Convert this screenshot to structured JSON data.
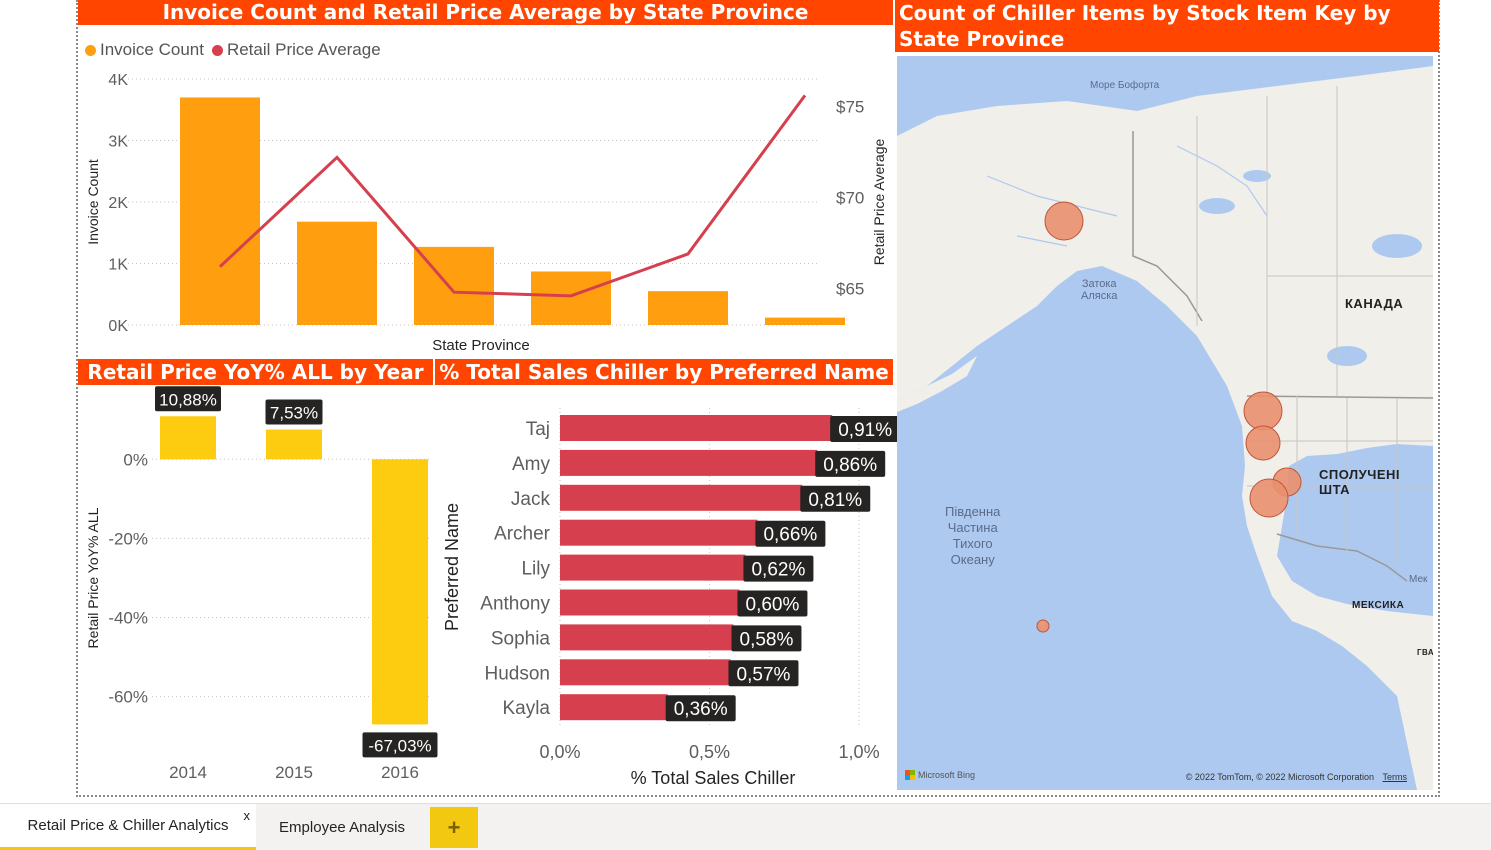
{
  "invoice_chart": {
    "title": "Invoice Count and Retail Price Average by State Province",
    "legend": [
      {
        "label": "Invoice Count",
        "color": "#ff9f0f"
      },
      {
        "label": "Retail Price Average",
        "color": "#d6404e"
      }
    ],
    "xlabel": "State Province",
    "ylabel_left": "Invoice Count",
    "ylabel_right": "Retail Price Average",
    "left_ticks": [
      "4K",
      "3K",
      "2K",
      "1K",
      "0K"
    ],
    "right_ticks": [
      "$75",
      "$70",
      "$65"
    ]
  },
  "yoy_chart": {
    "title": "Retail Price YoY% ALL by Year",
    "ylabel": "Retail Price YoY% ALL",
    "y_ticks": [
      "0%",
      "-20%",
      "-40%",
      "-60%"
    ]
  },
  "chiller_chart": {
    "title": "% Total Sales Chiller by Preferred Name",
    "ylabel": "Preferred Name",
    "xlabel": "% Total Sales Chiller",
    "x_ticks": [
      "0,0%",
      "0,5%",
      "1,0%"
    ]
  },
  "map_visual": {
    "title": "Count of Chiller Items by Stock Item Key by State Province",
    "labels": {
      "beaufort_sea": "Море Бофорта",
      "gulf_alaska_1": "Затока",
      "gulf_alaska_2": "Аляска",
      "canada": "КАНАДА",
      "usa": "СПОЛУЧЕНІ ШТА",
      "mexico": "МЕКСИКА",
      "mexico_sea": "Мек",
      "guat": "ГВА",
      "pacific_1": "Південна",
      "pacific_2": "Частина",
      "pacific_3": "Тихого",
      "pacific_4": "Океану"
    },
    "bing": "Microsoft Bing",
    "credits": "© 2022 TomTom, © 2022 Microsoft Corporation",
    "terms": "Terms",
    "bubble_color": "#e9906e"
  },
  "tabs": {
    "items": [
      {
        "label": "Retail Price & Chiller Analytics"
      },
      {
        "label": "Employee Analysis"
      }
    ],
    "close_glyph": "x",
    "add_glyph": "+"
  },
  "chart_data": [
    {
      "type": "bar",
      "title": "Invoice Count and Retail Price Average by State Province",
      "xlabel": "State Province",
      "categories": [
        "",
        "",
        "",
        "",
        "",
        ""
      ],
      "series": [
        {
          "name": "Invoice Count",
          "kind": "bar",
          "axis": "left",
          "values": [
            3700,
            1680,
            1270,
            870,
            550,
            120
          ]
        },
        {
          "name": "Retail Price Average",
          "kind": "line",
          "axis": "right",
          "values": [
            66.2,
            72.2,
            64.8,
            64.6,
            66.9,
            75.6
          ]
        }
      ],
      "ylim_left": [
        0,
        4000
      ],
      "ylim_right": [
        63,
        76.5
      ],
      "legend": "top-left",
      "grid": true
    },
    {
      "type": "bar",
      "title": "Retail Price YoY% ALL by Year",
      "categories": [
        "2014",
        "2015",
        "2016"
      ],
      "values": [
        10.88,
        7.53,
        -67.03
      ],
      "labels": [
        "10,88%",
        "7,53%",
        "-67,03%"
      ],
      "ylabel": "Retail Price YoY% ALL",
      "ylim": [
        -74,
        16
      ],
      "grid": true
    },
    {
      "type": "bar",
      "orientation": "horizontal",
      "title": "% Total Sales Chiller by Preferred Name",
      "categories": [
        "Taj",
        "Amy",
        "Jack",
        "Archer",
        "Lily",
        "Anthony",
        "Sophia",
        "Hudson",
        "Kayla"
      ],
      "values": [
        0.91,
        0.86,
        0.81,
        0.66,
        0.62,
        0.6,
        0.58,
        0.57,
        0.36
      ],
      "labels": [
        "0,91%",
        "0,86%",
        "0,81%",
        "0,66%",
        "0,62%",
        "0,60%",
        "0,58%",
        "0,57%",
        "0,36%"
      ],
      "xlabel": "% Total Sales Chiller",
      "ylabel": "Preferred Name",
      "xlim": [
        0,
        1.08
      ],
      "grid": true
    }
  ]
}
